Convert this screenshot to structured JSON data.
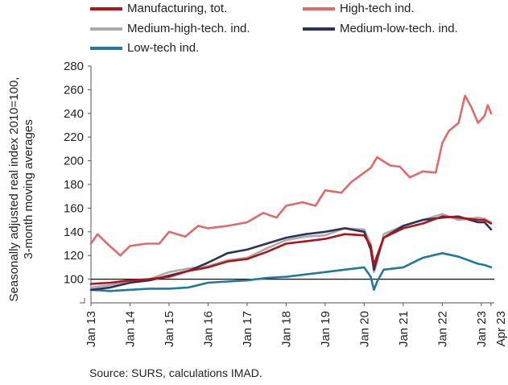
{
  "chart_data": {
    "type": "line",
    "ylabel_lines": [
      "Seasonally adjusted real  index 2010=100,",
      "3-month moving averages"
    ],
    "yticks": [
      100,
      120,
      140,
      160,
      180,
      200,
      220,
      240,
      260,
      280
    ],
    "ylim": [
      80,
      280
    ],
    "xticks": [
      "Jan 13",
      "Jan 14",
      "Jan 15",
      "Jan 16",
      "Jan 17",
      "Jan 18",
      "Jan 19",
      "Jan 20",
      "Jan 21",
      "Jan 22",
      "Jan 23",
      "Apr 23"
    ],
    "reference_line": 100,
    "legend_placement": "top",
    "series": [
      {
        "name": "Manufacturing, tot.",
        "color": "#b0141b",
        "x": [
          "2013-01",
          "2013-07",
          "2014-01",
          "2014-07",
          "2015-01",
          "2015-07",
          "2016-01",
          "2016-07",
          "2017-01",
          "2017-07",
          "2018-01",
          "2018-07",
          "2019-01",
          "2019-07",
          "2020-01",
          "2020-03",
          "2020-04",
          "2020-05",
          "2020-07",
          "2021-01",
          "2021-07",
          "2022-01",
          "2022-06",
          "2022-12",
          "2023-02",
          "2023-04"
        ],
        "y": [
          96,
          97,
          99,
          100,
          102,
          107,
          110,
          115,
          117,
          123,
          130,
          132,
          134,
          138,
          137,
          128,
          112,
          120,
          135,
          143,
          147,
          153,
          152,
          150,
          150,
          147
        ]
      },
      {
        "name": "High-tech ind.",
        "color": "#e06a6a",
        "x": [
          "2013-01",
          "2013-03",
          "2013-06",
          "2013-10",
          "2014-01",
          "2014-06",
          "2014-10",
          "2015-01",
          "2015-06",
          "2015-10",
          "2016-01",
          "2016-07",
          "2017-01",
          "2017-06",
          "2017-10",
          "2018-01",
          "2018-06",
          "2018-10",
          "2019-01",
          "2019-06",
          "2019-09",
          "2020-01",
          "2020-03",
          "2020-05",
          "2020-09",
          "2020-12",
          "2021-03",
          "2021-07",
          "2021-11",
          "2022-01",
          "2022-03",
          "2022-06",
          "2022-08",
          "2022-10",
          "2022-12",
          "2023-01",
          "2023-02",
          "2023-03",
          "2023-04"
        ],
        "y": [
          130,
          138,
          130,
          120,
          128,
          130,
          130,
          140,
          136,
          145,
          143,
          145,
          148,
          156,
          152,
          162,
          165,
          162,
          175,
          173,
          182,
          190,
          194,
          203,
          196,
          195,
          186,
          191,
          190,
          215,
          225,
          232,
          255,
          245,
          232,
          235,
          238,
          247,
          240
        ]
      },
      {
        "name": "Medium-high-tech. ind.",
        "color": "#ababab",
        "x": [
          "2013-01",
          "2013-07",
          "2014-01",
          "2014-07",
          "2015-01",
          "2015-07",
          "2016-01",
          "2016-07",
          "2017-01",
          "2017-07",
          "2018-01",
          "2018-07",
          "2019-01",
          "2019-07",
          "2020-01",
          "2020-03",
          "2020-04",
          "2020-05",
          "2020-07",
          "2021-01",
          "2021-07",
          "2022-01",
          "2022-06",
          "2022-12",
          "2023-02",
          "2023-04"
        ],
        "y": [
          93,
          95,
          98,
          100,
          106,
          109,
          111,
          116,
          118,
          126,
          133,
          136,
          137,
          143,
          142,
          130,
          106,
          114,
          138,
          145,
          150,
          155,
          150,
          152,
          151,
          148
        ]
      },
      {
        "name": "Medium-low-tech. ind.",
        "color": "#2d3356",
        "x": [
          "2013-01",
          "2013-07",
          "2014-01",
          "2014-07",
          "2015-01",
          "2015-07",
          "2016-01",
          "2016-07",
          "2017-01",
          "2017-07",
          "2018-01",
          "2018-07",
          "2019-01",
          "2019-07",
          "2020-01",
          "2020-03",
          "2020-04",
          "2020-05",
          "2020-07",
          "2021-01",
          "2021-07",
          "2022-01",
          "2022-06",
          "2022-12",
          "2023-02",
          "2023-04"
        ],
        "y": [
          91,
          93,
          97,
          99,
          103,
          107,
          114,
          122,
          125,
          130,
          135,
          138,
          140,
          143,
          140,
          125,
          108,
          118,
          135,
          145,
          150,
          152,
          153,
          148,
          148,
          142
        ]
      },
      {
        "name": "Low-tech ind.",
        "color": "#1f7a9b",
        "x": [
          "2013-01",
          "2013-07",
          "2014-01",
          "2014-07",
          "2015-01",
          "2015-07",
          "2016-01",
          "2016-07",
          "2017-01",
          "2017-07",
          "2018-01",
          "2018-07",
          "2019-01",
          "2019-07",
          "2020-01",
          "2020-03",
          "2020-04",
          "2020-05",
          "2020-07",
          "2021-01",
          "2021-07",
          "2022-01",
          "2022-06",
          "2022-12",
          "2023-02",
          "2023-04"
        ],
        "y": [
          91,
          90,
          91,
          92,
          92,
          93,
          97,
          98,
          99,
          101,
          102,
          104,
          106,
          108,
          110,
          102,
          91,
          98,
          108,
          110,
          118,
          122,
          119,
          113,
          112,
          110
        ]
      }
    ]
  },
  "source_text": "Source: SURS, calculations IMAD."
}
